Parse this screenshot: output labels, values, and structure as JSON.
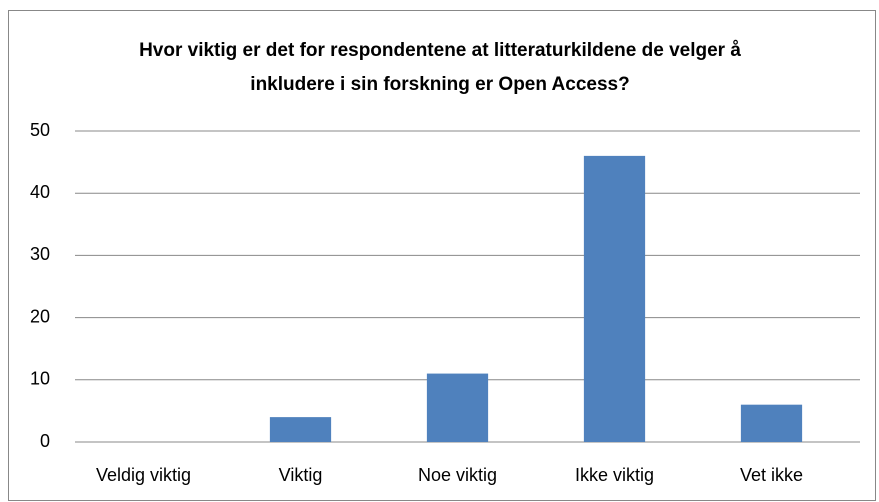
{
  "chart_data": {
    "type": "bar",
    "title": "Hvor viktig er det for respondentene at litteraturkildene de velger å inkludere i sin forskning er Open Access?",
    "categories": [
      "Veldig viktig",
      "Viktig",
      "Noe viktig",
      "Ikke viktig",
      "Vet ikke"
    ],
    "values": [
      0,
      4,
      11,
      46,
      6
    ],
    "color": "#4f81bd",
    "ylim": [
      0,
      50
    ],
    "yticks": [
      0,
      10,
      20,
      30,
      40,
      50
    ],
    "grid": true
  }
}
